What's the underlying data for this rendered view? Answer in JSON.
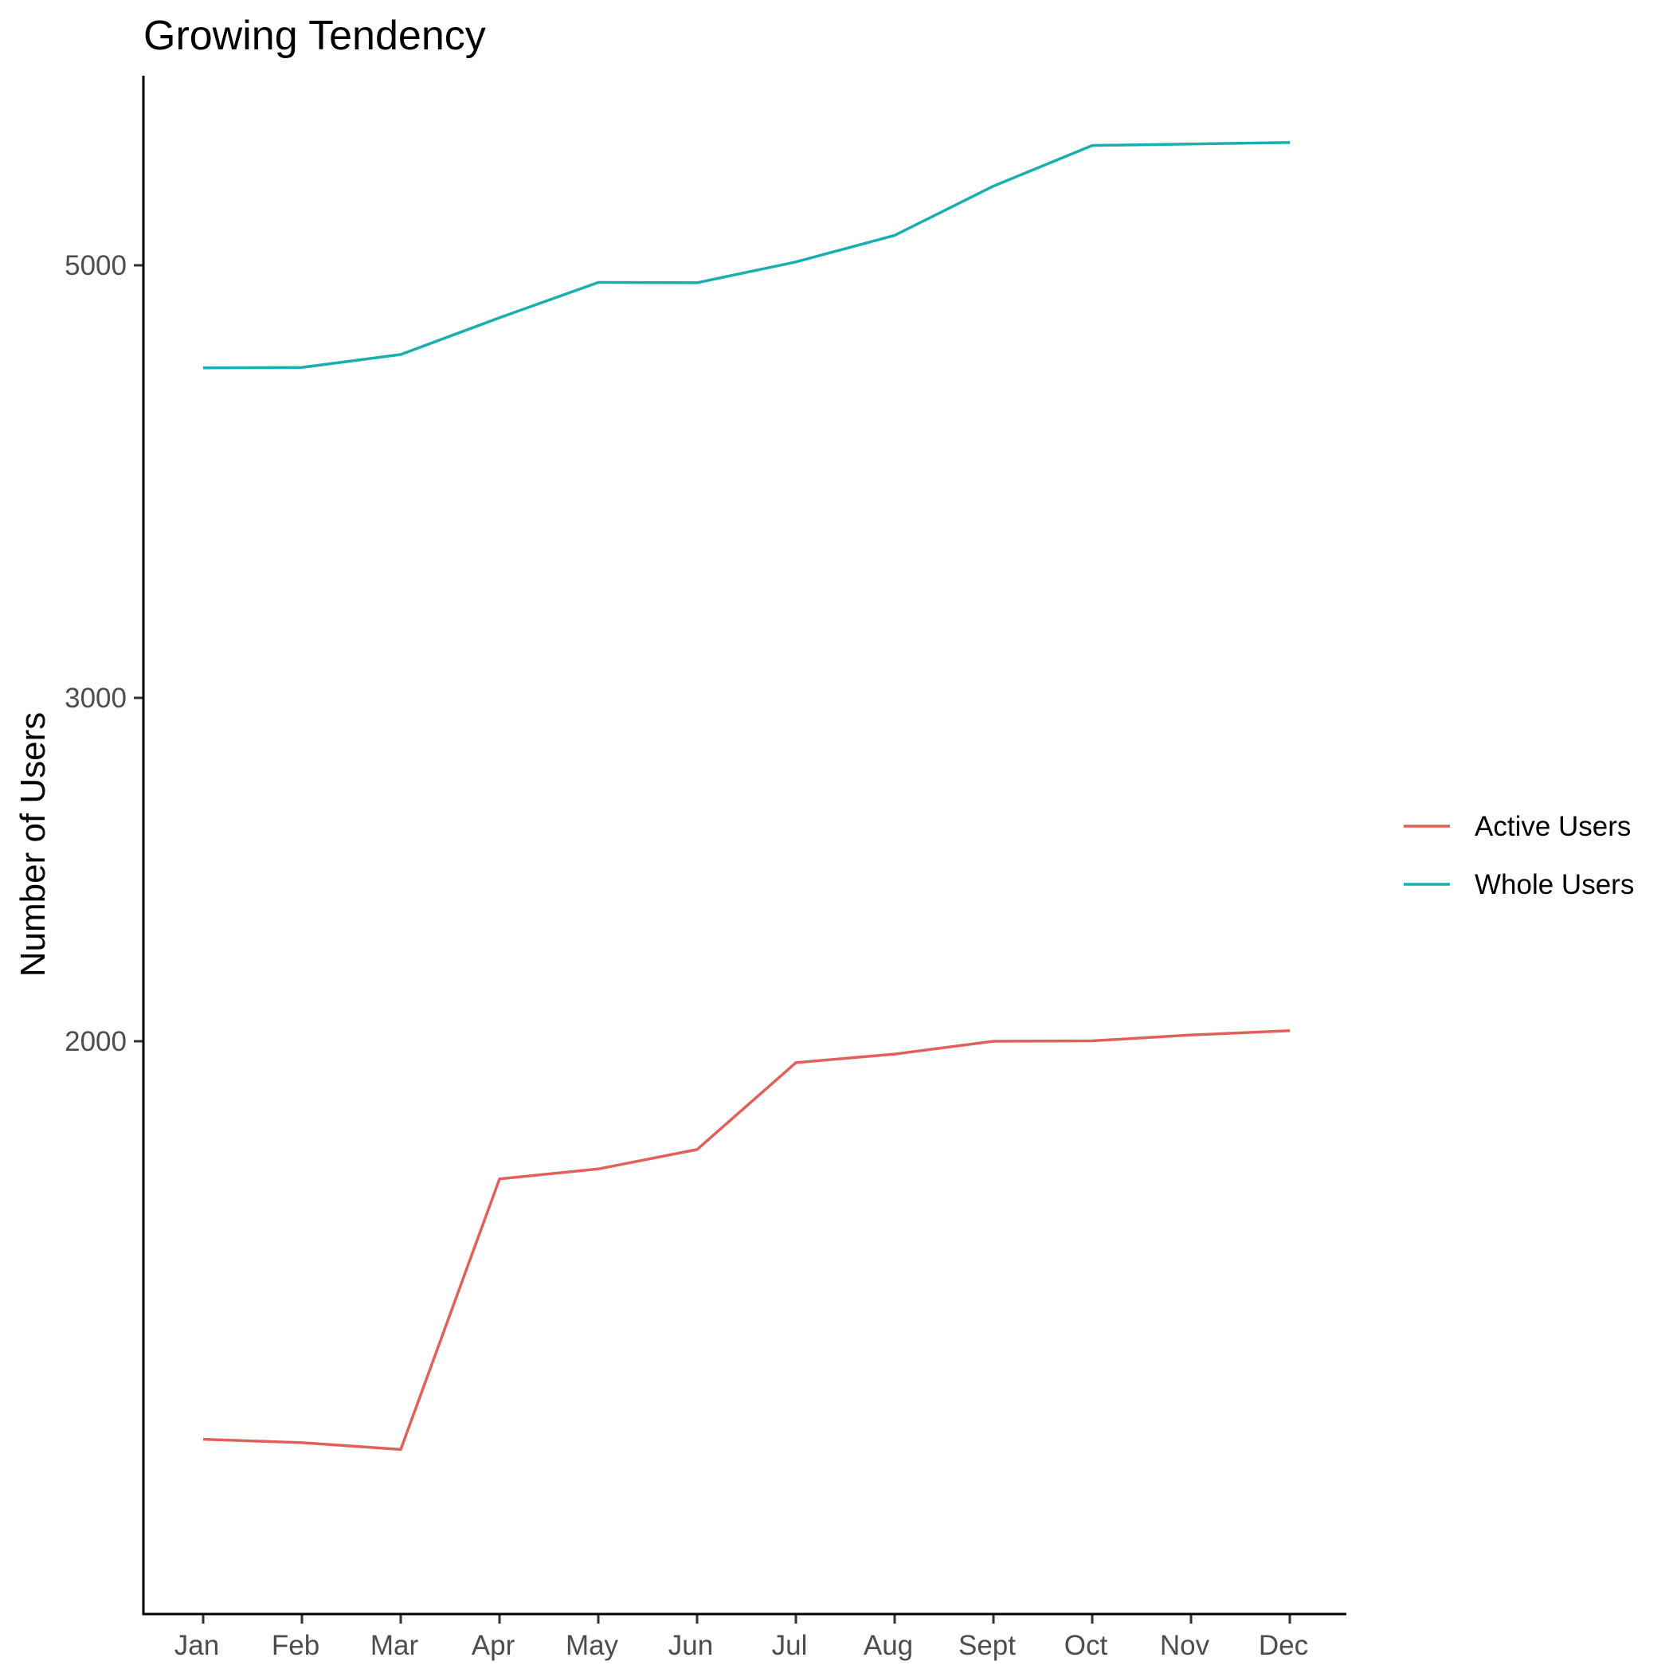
{
  "chart_data": {
    "type": "line",
    "title": "Growing Tendency",
    "xlabel": "",
    "ylabel": "Number of Users",
    "categories": [
      "Jan",
      "Feb",
      "Mar",
      "Apr",
      "May",
      "Jun",
      "Jul",
      "Aug",
      "Sept",
      "Oct",
      "Nov",
      "Dec"
    ],
    "y_scale": "log",
    "y_ticks": [
      2000,
      3000,
      5000
    ],
    "ylim": [
      800,
      6000
    ],
    "grid": false,
    "legend_position": "right",
    "series": [
      {
        "name": "Active Users",
        "color": "#E0605A",
        "values": [
          1250,
          1245,
          1235,
          1700,
          1720,
          1760,
          1950,
          1970,
          2000,
          2001,
          2015,
          2025
        ]
      },
      {
        "name": "Whole Users",
        "color": "#1AAEAE",
        "values": [
          4430,
          4432,
          4500,
          4700,
          4900,
          4898,
          5020,
          5180,
          5490,
          5760,
          5770,
          5780
        ]
      }
    ]
  }
}
